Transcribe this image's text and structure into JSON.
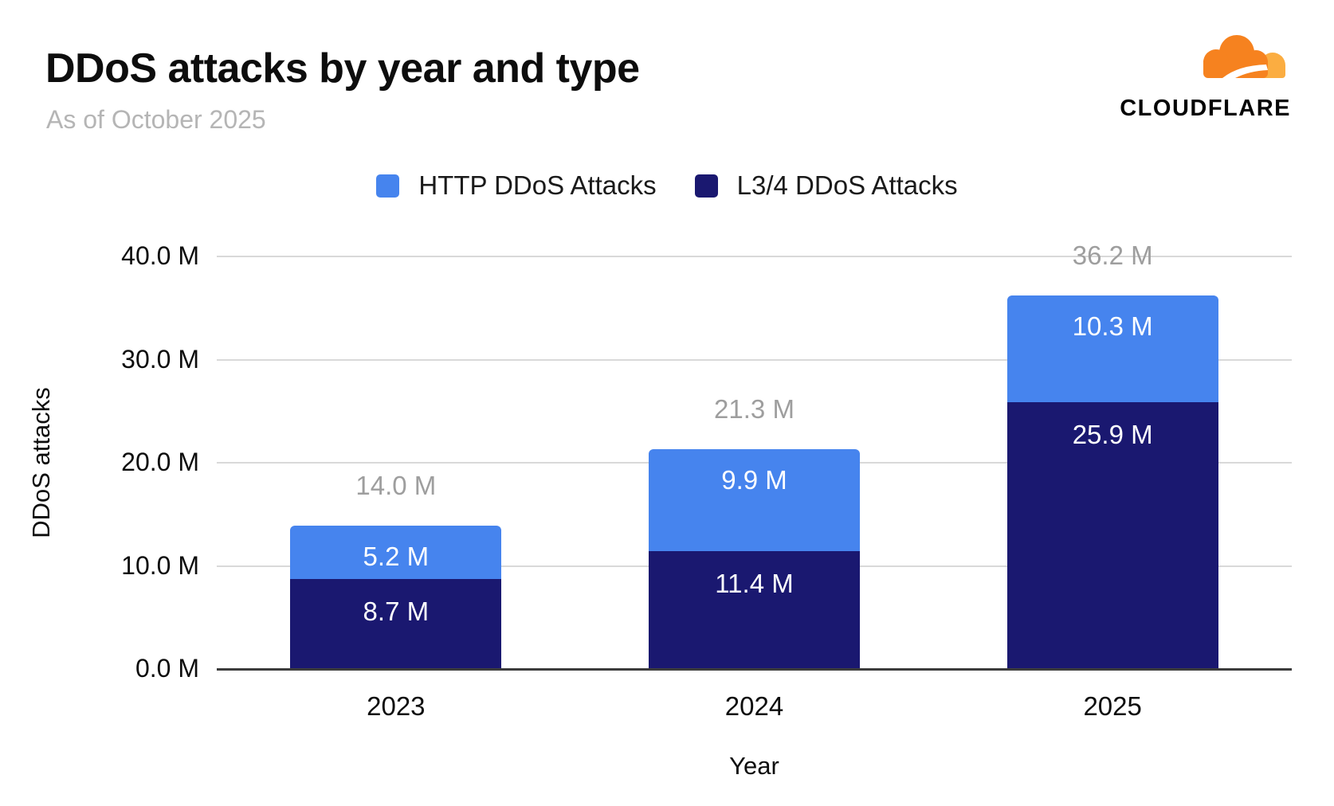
{
  "header": {
    "title": "DDoS attacks by year and type",
    "subtitle": "As of October 2025",
    "logo_text": "CLOUDFLARE"
  },
  "brand_colors": {
    "cloud_orange": "#f6821f",
    "cloud_light_orange": "#fbad41",
    "wordmark_black": "#050505"
  },
  "chart_data": {
    "type": "bar",
    "stacked": true,
    "title": "DDoS attacks by year and type",
    "subtitle": "As of October 2025",
    "categories": [
      "2023",
      "2024",
      "2025"
    ],
    "series": [
      {
        "name": "HTTP DDoS Attacks",
        "color": "#4684ee",
        "values": [
          5.2,
          9.9,
          10.3
        ],
        "labels": [
          "5.2 M",
          "9.9 M",
          "10.3 M"
        ]
      },
      {
        "name": "L3/4 DDoS Attacks",
        "color": "#1a1870",
        "values": [
          8.7,
          11.4,
          25.9
        ],
        "labels": [
          "8.7 M",
          "11.4 M",
          "25.9 M"
        ]
      }
    ],
    "totals": [
      14.0,
      21.3,
      36.2
    ],
    "total_labels": [
      "14.0 M",
      "21.3 M",
      "36.2 M"
    ],
    "xlabel": "Year",
    "ylabel": "DDoS attacks",
    "ylim": [
      0,
      40
    ],
    "yticks": [
      0,
      10,
      20,
      30,
      40
    ],
    "ytick_labels": [
      "0.0 M",
      "10.0 M",
      "20.0 M",
      "30.0 M",
      "40.0 M"
    ],
    "grid": true,
    "legend_position": "top",
    "gridline_color": "#d9d9d9",
    "axis_line_color": "#3c3c3c",
    "total_label_color": "#9e9e9e"
  }
}
